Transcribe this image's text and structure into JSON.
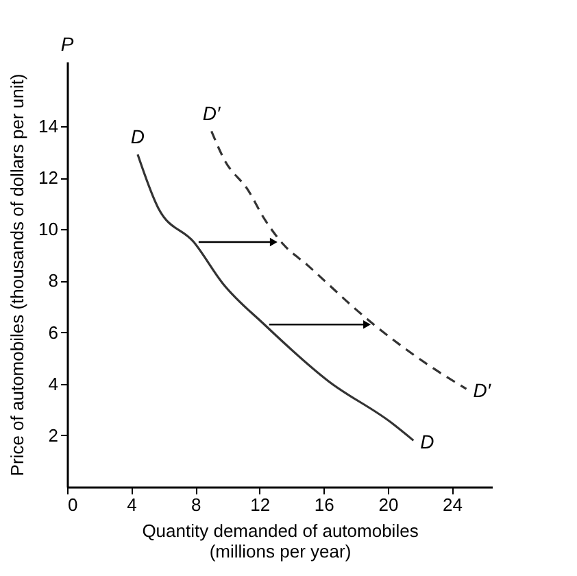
{
  "chart_data": {
    "type": "line",
    "xlabel": "Quantity demanded of automobiles\n(millions per year)",
    "ylabel": "Price of automobiles (thousands of dollars per unit)",
    "annotations": [
      "P"
    ],
    "xlim": [
      0,
      26.5
    ],
    "ylim": [
      0,
      16.5
    ],
    "xticks": [
      0,
      4,
      8,
      12,
      16,
      20,
      24
    ],
    "yticks": [
      2,
      4,
      6,
      8,
      10,
      12,
      14
    ],
    "grid": false,
    "series": [
      {
        "name": "D",
        "color": "#333333",
        "line_style": "solid",
        "x": [
          4.4,
          5.7,
          7.9,
          9.7,
          12.3,
          16.3,
          20.2,
          21.6
        ],
        "values": [
          12.9,
          10.8,
          9.5,
          7.9,
          6.3,
          4.1,
          2.5,
          1.8
        ]
      },
      {
        "name": "D′",
        "color": "#333333",
        "line_style": "dashed",
        "x": [
          9.0,
          9.8,
          11.3,
          12.3,
          13.5,
          15.0,
          16.4,
          17.8,
          21.0,
          22.6,
          24.9
        ],
        "values": [
          13.8,
          12.7,
          11.5,
          10.4,
          9.4,
          8.6,
          7.8,
          7.0,
          5.4,
          4.7,
          3.8
        ]
      }
    ]
  }
}
